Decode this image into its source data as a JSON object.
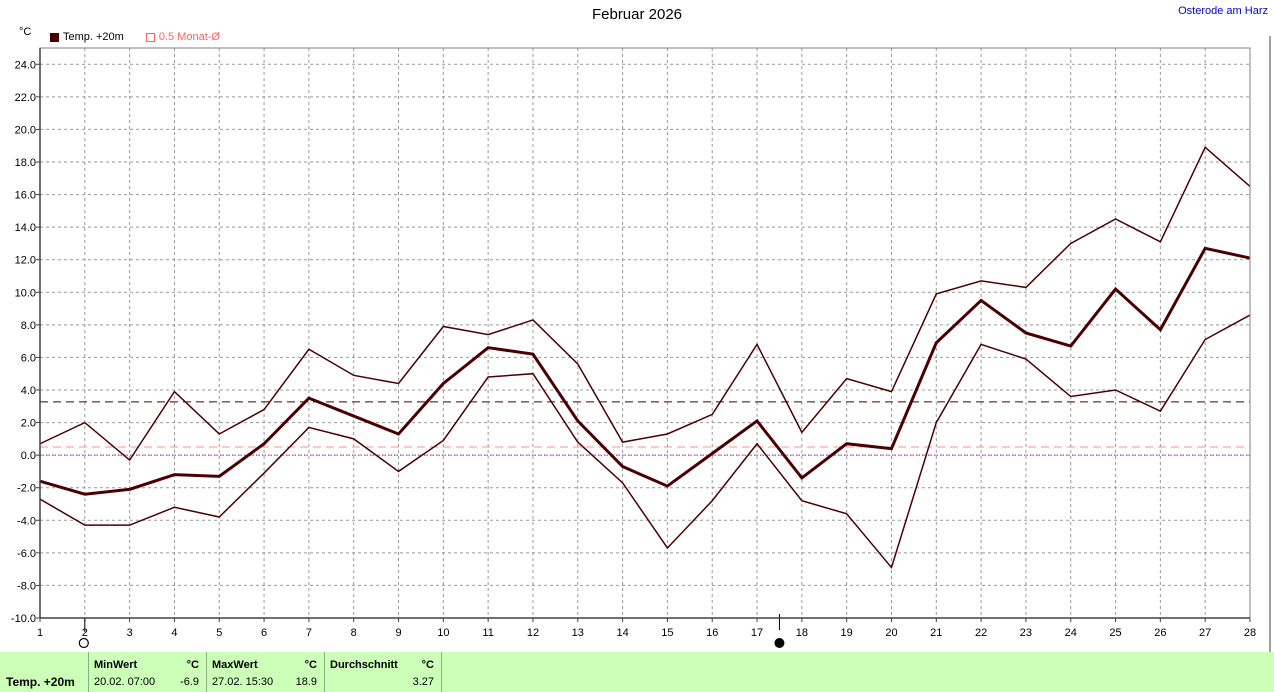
{
  "title": "Februar 2026",
  "location": "Osterode am Harz",
  "unit_label": "°C",
  "legend": {
    "series_label": "Temp. +20m",
    "avg_label": "0.5 Monat-Ø"
  },
  "footer": {
    "series_label": "Temp. +20m",
    "min": {
      "header": "MinWert",
      "unit": "°C",
      "datetime": "20.02.  07:00",
      "value": "-6.9"
    },
    "max": {
      "header": "MaxWert",
      "unit": "°C",
      "datetime": "27.02.  15:30",
      "value": "18.9"
    },
    "avg": {
      "header": "Durchschnitt",
      "unit": "°C",
      "datetime": "",
      "value": "3.27"
    }
  },
  "colors": {
    "series": "#4a0000",
    "average_line": "#4a0000",
    "half_month_avg": "#ff9090",
    "zero_line": "#cc00cc",
    "grid": "#999999",
    "footer_bg": "#ccffb8"
  },
  "chart_data": {
    "type": "line",
    "title": "Februar 2026",
    "ylabel": "°C",
    "xlabel": "",
    "xlim": [
      1,
      28
    ],
    "ylim": [
      -10,
      25
    ],
    "grid": true,
    "legend_position": "top-left",
    "x": [
      1,
      2,
      3,
      4,
      5,
      6,
      7,
      8,
      9,
      10,
      11,
      12,
      13,
      14,
      15,
      16,
      17,
      18,
      19,
      20,
      21,
      22,
      23,
      24,
      25,
      26,
      27,
      28
    ],
    "y_ticks": [
      "-10.0",
      "-8.0",
      "-6.0",
      "-4.0",
      "-2.0",
      "0.0",
      "2.0",
      "4.0",
      "6.0",
      "8.0",
      "10.0",
      "12.0",
      "14.0",
      "16.0",
      "18.0",
      "20.0",
      "22.0",
      "24.0"
    ],
    "series": [
      {
        "name": "Temp. +20m",
        "role": "mean",
        "values": [
          -1.6,
          -2.4,
          -2.1,
          -1.2,
          -1.3,
          0.7,
          3.5,
          2.4,
          1.3,
          4.4,
          6.6,
          6.2,
          2.1,
          -0.7,
          -1.9,
          0.1,
          2.1,
          -1.4,
          0.7,
          0.4,
          6.9,
          9.5,
          7.5,
          6.7,
          10.2,
          7.7,
          12.7,
          12.1
        ]
      },
      {
        "role": "max",
        "values": [
          0.7,
          2.0,
          -0.3,
          3.9,
          1.3,
          2.8,
          6.5,
          4.9,
          4.4,
          7.9,
          7.4,
          8.3,
          5.6,
          0.8,
          1.3,
          2.5,
          6.8,
          1.4,
          4.7,
          3.9,
          9.9,
          10.7,
          10.3,
          13.0,
          14.5,
          13.1,
          18.9,
          16.5
        ]
      },
      {
        "role": "min",
        "values": [
          -2.7,
          -4.3,
          -4.3,
          -3.2,
          -3.8,
          -1.1,
          1.7,
          1.0,
          -1.0,
          0.9,
          4.8,
          5.0,
          0.8,
          -1.7,
          -5.7,
          -2.8,
          0.7,
          -2.8,
          -3.6,
          -6.9,
          2.0,
          6.8,
          5.9,
          3.6,
          4.0,
          2.7,
          7.1,
          8.6
        ]
      }
    ],
    "reference_lines": [
      {
        "role": "monthly-average",
        "value": 3.27,
        "style": "dashed"
      },
      {
        "name": "0.5 Monat-Ø",
        "value": 0.5,
        "style": "dashed"
      },
      {
        "role": "zero",
        "value": 0.0,
        "style": "dotted"
      }
    ],
    "markers": {
      "moon_new": 2,
      "moon_full": 17.5
    }
  }
}
